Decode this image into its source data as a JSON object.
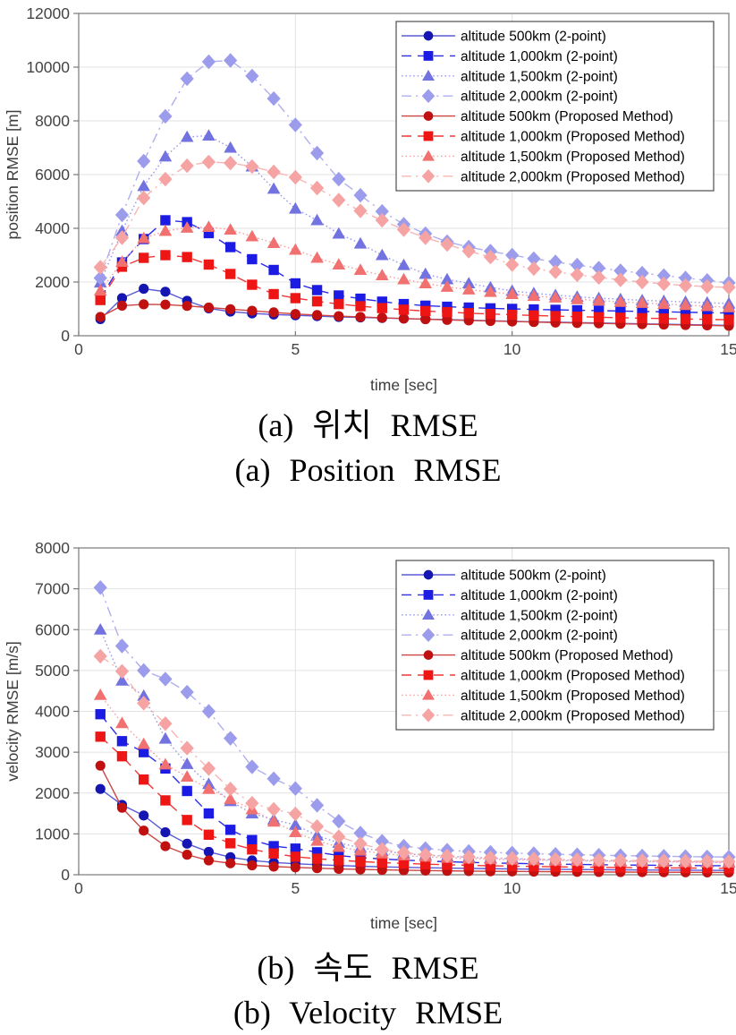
{
  "captions": {
    "a_korean": "(a) 위치 RMSE",
    "a_english": "(a) Position RMSE",
    "b_korean": "(b) 속도 RMSE",
    "b_english": "(b) Velocity RMSE"
  },
  "chart_data": [
    {
      "type": "line",
      "name": "position-rmse",
      "xlabel": "time [sec]",
      "ylabel": "position RMSE [m]",
      "xlim": [
        0,
        15
      ],
      "ylim": [
        0,
        12000
      ],
      "xticks": [
        0,
        5,
        10,
        15
      ],
      "yticks": [
        0,
        2000,
        4000,
        6000,
        8000,
        10000,
        12000
      ],
      "grid": true,
      "legend_position": "top-right",
      "x": [
        0.5,
        1,
        1.5,
        2,
        2.5,
        3,
        3.5,
        4,
        4.5,
        5,
        5.5,
        6,
        6.5,
        7,
        7.5,
        8,
        8.5,
        9,
        9.5,
        10,
        10.5,
        11,
        11.5,
        12,
        12.5,
        13,
        13.5,
        14,
        14.5,
        15
      ],
      "series": [
        {
          "name": "altitude 500km (2-point)",
          "marker": "circle",
          "line": "solid",
          "color": "#1515b2",
          "line_color": "#5a5ad8",
          "values": [
            620,
            1400,
            1750,
            1640,
            1300,
            1020,
            900,
            830,
            790,
            760,
            730,
            700,
            680,
            660,
            640,
            620,
            600,
            580,
            560,
            540,
            520,
            505,
            490,
            475,
            460,
            445,
            430,
            415,
            400,
            385
          ]
        },
        {
          "name": "altitude 1,000km (2-point)",
          "marker": "square",
          "line": "dashed",
          "color": "#1b1be4",
          "line_color": "#2d2de8",
          "values": [
            1380,
            2730,
            3600,
            4300,
            4230,
            3820,
            3300,
            2850,
            2450,
            1950,
            1700,
            1500,
            1380,
            1270,
            1180,
            1120,
            1080,
            1050,
            1020,
            1000,
            980,
            965,
            950,
            935,
            920,
            905,
            890,
            875,
            860,
            845
          ]
        },
        {
          "name": "altitude 1,500km (2-point)",
          "marker": "triangle",
          "line": "dotted",
          "color": "#7272e0",
          "line_color": "#9a9aee",
          "values": [
            1980,
            3900,
            5570,
            6670,
            7400,
            7450,
            7000,
            6300,
            5470,
            4730,
            4300,
            3800,
            3430,
            3000,
            2630,
            2300,
            2100,
            1950,
            1800,
            1670,
            1580,
            1510,
            1450,
            1400,
            1360,
            1320,
            1290,
            1260,
            1230,
            1200
          ]
        },
        {
          "name": "altitude 2,000km (2-point)",
          "marker": "diamond",
          "line": "dashdot",
          "color": "#9c9cec",
          "line_color": "#aeaef0",
          "values": [
            2150,
            4500,
            6500,
            8170,
            9570,
            10200,
            10250,
            9670,
            8830,
            7850,
            6800,
            5830,
            5230,
            4630,
            4150,
            3800,
            3500,
            3300,
            3150,
            3000,
            2870,
            2750,
            2630,
            2520,
            2420,
            2330,
            2240,
            2150,
            2060,
            1970
          ]
        },
        {
          "name": "altitude 500km (Proposed Method)",
          "marker": "circle",
          "line": "solid",
          "color": "#c01010",
          "line_color": "#cc4444",
          "values": [
            700,
            1120,
            1170,
            1160,
            1110,
            1050,
            990,
            930,
            870,
            810,
            770,
            730,
            700,
            670,
            640,
            615,
            590,
            570,
            550,
            530,
            510,
            490,
            475,
            460,
            445,
            430,
            415,
            400,
            385,
            370
          ]
        },
        {
          "name": "altitude 1,000km (Proposed Method)",
          "marker": "square",
          "line": "dashed",
          "color": "#ee1515",
          "line_color": "#f23636",
          "values": [
            1330,
            2570,
            2900,
            3000,
            2930,
            2650,
            2300,
            1900,
            1550,
            1400,
            1280,
            1180,
            1100,
            1030,
            970,
            920,
            880,
            840,
            810,
            780,
            755,
            730,
            710,
            690,
            670,
            655,
            640,
            625,
            610,
            595
          ]
        },
        {
          "name": "altitude 1,500km (Proposed Method)",
          "marker": "triangle",
          "line": "dotted",
          "color": "#f17070",
          "line_color": "#f6a2a2",
          "values": [
            1680,
            2750,
            3630,
            3900,
            4020,
            4050,
            3950,
            3700,
            3450,
            3200,
            2900,
            2650,
            2450,
            2250,
            2100,
            1950,
            1820,
            1720,
            1630,
            1550,
            1480,
            1420,
            1360,
            1310,
            1260,
            1220,
            1180,
            1140,
            1100,
            1060
          ]
        },
        {
          "name": "altitude 2,000km (Proposed Method)",
          "marker": "diamond",
          "line": "dashdot",
          "color": "#f5a3a3",
          "line_color": "#f7b6b6",
          "values": [
            2550,
            3650,
            5130,
            5830,
            6330,
            6470,
            6430,
            6300,
            6100,
            5900,
            5500,
            5050,
            4650,
            4300,
            3950,
            3650,
            3400,
            3150,
            2930,
            2650,
            2500,
            2380,
            2270,
            2170,
            2080,
            2000,
            1930,
            1870,
            1830,
            1800
          ]
        }
      ]
    },
    {
      "type": "line",
      "name": "velocity-rmse",
      "xlabel": "time [sec]",
      "ylabel": "velocity RMSE [m/s]",
      "xlim": [
        0,
        15
      ],
      "ylim": [
        0,
        8000
      ],
      "xticks": [
        0,
        5,
        10,
        15
      ],
      "yticks": [
        0,
        1000,
        2000,
        3000,
        4000,
        5000,
        6000,
        7000,
        8000
      ],
      "grid": true,
      "legend_position": "top-right",
      "x": [
        0.5,
        1,
        1.5,
        2,
        2.5,
        3,
        3.5,
        4,
        4.5,
        5,
        5.5,
        6,
        6.5,
        7,
        7.5,
        8,
        8.5,
        9,
        9.5,
        10,
        10.5,
        11,
        11.5,
        12,
        12.5,
        13,
        13.5,
        14,
        14.5,
        15
      ],
      "series": [
        {
          "name": "altitude 500km (2-point)",
          "marker": "circle",
          "line": "solid",
          "color": "#1515b2",
          "line_color": "#5a5ad8",
          "values": [
            2100,
            1710,
            1450,
            1040,
            760,
            560,
            430,
            350,
            300,
            270,
            245,
            225,
            208,
            194,
            182,
            172,
            163,
            155,
            148,
            142,
            137,
            132,
            128,
            124,
            120,
            117,
            114,
            111,
            108,
            105
          ]
        },
        {
          "name": "altitude 1,000km (2-point)",
          "marker": "square",
          "line": "dashed",
          "color": "#1b1be4",
          "line_color": "#2d2de8",
          "values": [
            3930,
            3270,
            3000,
            2600,
            2050,
            1500,
            1100,
            850,
            700,
            640,
            550,
            470,
            420,
            385,
            358,
            336,
            318,
            303,
            290,
            279,
            269,
            261,
            253,
            246,
            240,
            235,
            230,
            226,
            222,
            218
          ]
        },
        {
          "name": "altitude 1,500km (2-point)",
          "marker": "triangle",
          "line": "dotted",
          "color": "#7272e0",
          "line_color": "#9a9aee",
          "values": [
            6000,
            4750,
            4380,
            3330,
            2710,
            2220,
            1800,
            1500,
            1350,
            1220,
            960,
            780,
            660,
            580,
            520,
            480,
            450,
            425,
            405,
            390,
            376,
            364,
            354,
            345,
            337,
            330,
            324,
            318,
            313,
            308
          ]
        },
        {
          "name": "altitude 2,000km (2-point)",
          "marker": "diamond",
          "line": "dashdot",
          "color": "#9c9cec",
          "line_color": "#aeaef0",
          "values": [
            7030,
            5600,
            5000,
            4790,
            4470,
            4000,
            3340,
            2640,
            2350,
            2110,
            1700,
            1310,
            1020,
            820,
            700,
            640,
            600,
            570,
            548,
            530,
            515,
            501,
            489,
            478,
            468,
            460,
            452,
            445,
            438,
            432
          ]
        },
        {
          "name": "altitude 500km (Proposed Method)",
          "marker": "circle",
          "line": "solid",
          "color": "#c01010",
          "line_color": "#cc4444",
          "values": [
            2670,
            1640,
            1080,
            700,
            490,
            350,
            280,
            230,
            200,
            180,
            160,
            143,
            130,
            119,
            110,
            102,
            95,
            90,
            85,
            81,
            77,
            74,
            71,
            68,
            66,
            64,
            62,
            60,
            58,
            56
          ]
        },
        {
          "name": "altitude 1,000km (Proposed Method)",
          "marker": "square",
          "line": "dashed",
          "color": "#ee1515",
          "line_color": "#f23636",
          "values": [
            3380,
            2900,
            2330,
            1820,
            1340,
            980,
            770,
            620,
            520,
            440,
            392,
            354,
            323,
            298,
            277,
            259,
            244,
            231,
            220,
            210,
            202,
            194,
            188,
            182,
            176,
            172,
            168,
            164,
            160,
            157
          ]
        },
        {
          "name": "altitude 1,500km (Proposed Method)",
          "marker": "triangle",
          "line": "dotted",
          "color": "#f17070",
          "line_color": "#f6a2a2",
          "values": [
            4400,
            3710,
            3200,
            2700,
            2400,
            2100,
            1850,
            1600,
            1300,
            1040,
            830,
            680,
            590,
            520,
            470,
            440,
            415,
            395,
            380,
            367,
            356,
            346,
            338,
            330,
            323,
            317,
            311,
            306,
            301,
            297
          ]
        },
        {
          "name": "altitude 2,000km (Proposed Method)",
          "marker": "diamond",
          "line": "dashdot",
          "color": "#f5a3a3",
          "line_color": "#f7b6b6",
          "values": [
            5350,
            4980,
            4200,
            3700,
            3100,
            2600,
            2100,
            1750,
            1600,
            1490,
            1180,
            930,
            760,
            620,
            540,
            490,
            460,
            435,
            415,
            400,
            388,
            377,
            368,
            360,
            352,
            346,
            340,
            334,
            329,
            324
          ]
        }
      ]
    }
  ],
  "style": {
    "grid_color": "#e2e2e2",
    "axis_color": "#7a7a7a",
    "tick_label_color": "#444444",
    "legend_border_color": "#4d4d4d",
    "legend_background": "#ffffff"
  }
}
